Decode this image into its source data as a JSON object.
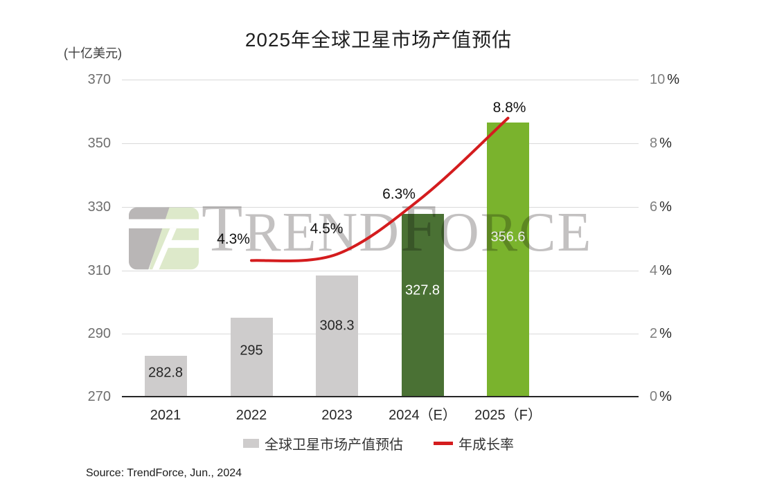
{
  "title": "2025年全球卫星市场产值预估",
  "source": "Source: TrendForce, Jun., 2024",
  "watermark": {
    "t1": "T",
    "t2": "REND",
    "t3": "F",
    "t4": "ORCE"
  },
  "colors": {
    "bar_gray": "#cecccc",
    "bar_dark_green": "#4a7134",
    "bar_light_green": "#7ab32d",
    "line_red": "#d41c1e",
    "gridline": "#d9d9d9",
    "axis_text_gray": "#6e6e6e"
  },
  "chart_data": {
    "type": "bar+line",
    "title": "2025年全球卫星市场产值预估",
    "categories": [
      "2021",
      "2022",
      "2023",
      "2024（E）",
      "2025（F）"
    ],
    "series": [
      {
        "name": "全球卫星市场产值预估",
        "type": "bar",
        "axis": "left",
        "values": [
          282.8,
          295,
          308.3,
          327.8,
          356.6
        ],
        "labels": [
          "282.8",
          "295",
          "308.3",
          "327.8",
          "356.6"
        ],
        "colors": [
          "#cecccc",
          "#cecccc",
          "#cecccc",
          "#4a7134",
          "#7ab32d"
        ],
        "label_colors": [
          "#262626",
          "#262626",
          "#262626",
          "#ffffff",
          "#ececec"
        ]
      },
      {
        "name": "年成长率",
        "type": "line",
        "axis": "right",
        "x": [
          "2022",
          "2023",
          "2024（E）",
          "2025（F）"
        ],
        "values_pct": [
          4.3,
          4.5,
          6.3,
          8.8
        ],
        "labels": [
          "4.3%",
          "4.5%",
          "6.3%",
          "8.8%"
        ],
        "color": "#d41c1e"
      }
    ],
    "left_axis": {
      "unit_label": "(十亿美元)",
      "min": 270,
      "max": 370,
      "step": 20,
      "ticks": [
        "370",
        "350",
        "330",
        "310",
        "290",
        "270"
      ]
    },
    "right_axis": {
      "min": 0,
      "max": 10,
      "step": 2,
      "tick_parts": [
        {
          "n": "10",
          "p": "%"
        },
        {
          "n": "8",
          "p": "%"
        },
        {
          "n": "6",
          "p": "%"
        },
        {
          "n": "4",
          "p": "%"
        },
        {
          "n": "2",
          "p": "%"
        },
        {
          "n": "0",
          "p": "%"
        }
      ]
    },
    "grid": true,
    "legend_position": "bottom"
  }
}
